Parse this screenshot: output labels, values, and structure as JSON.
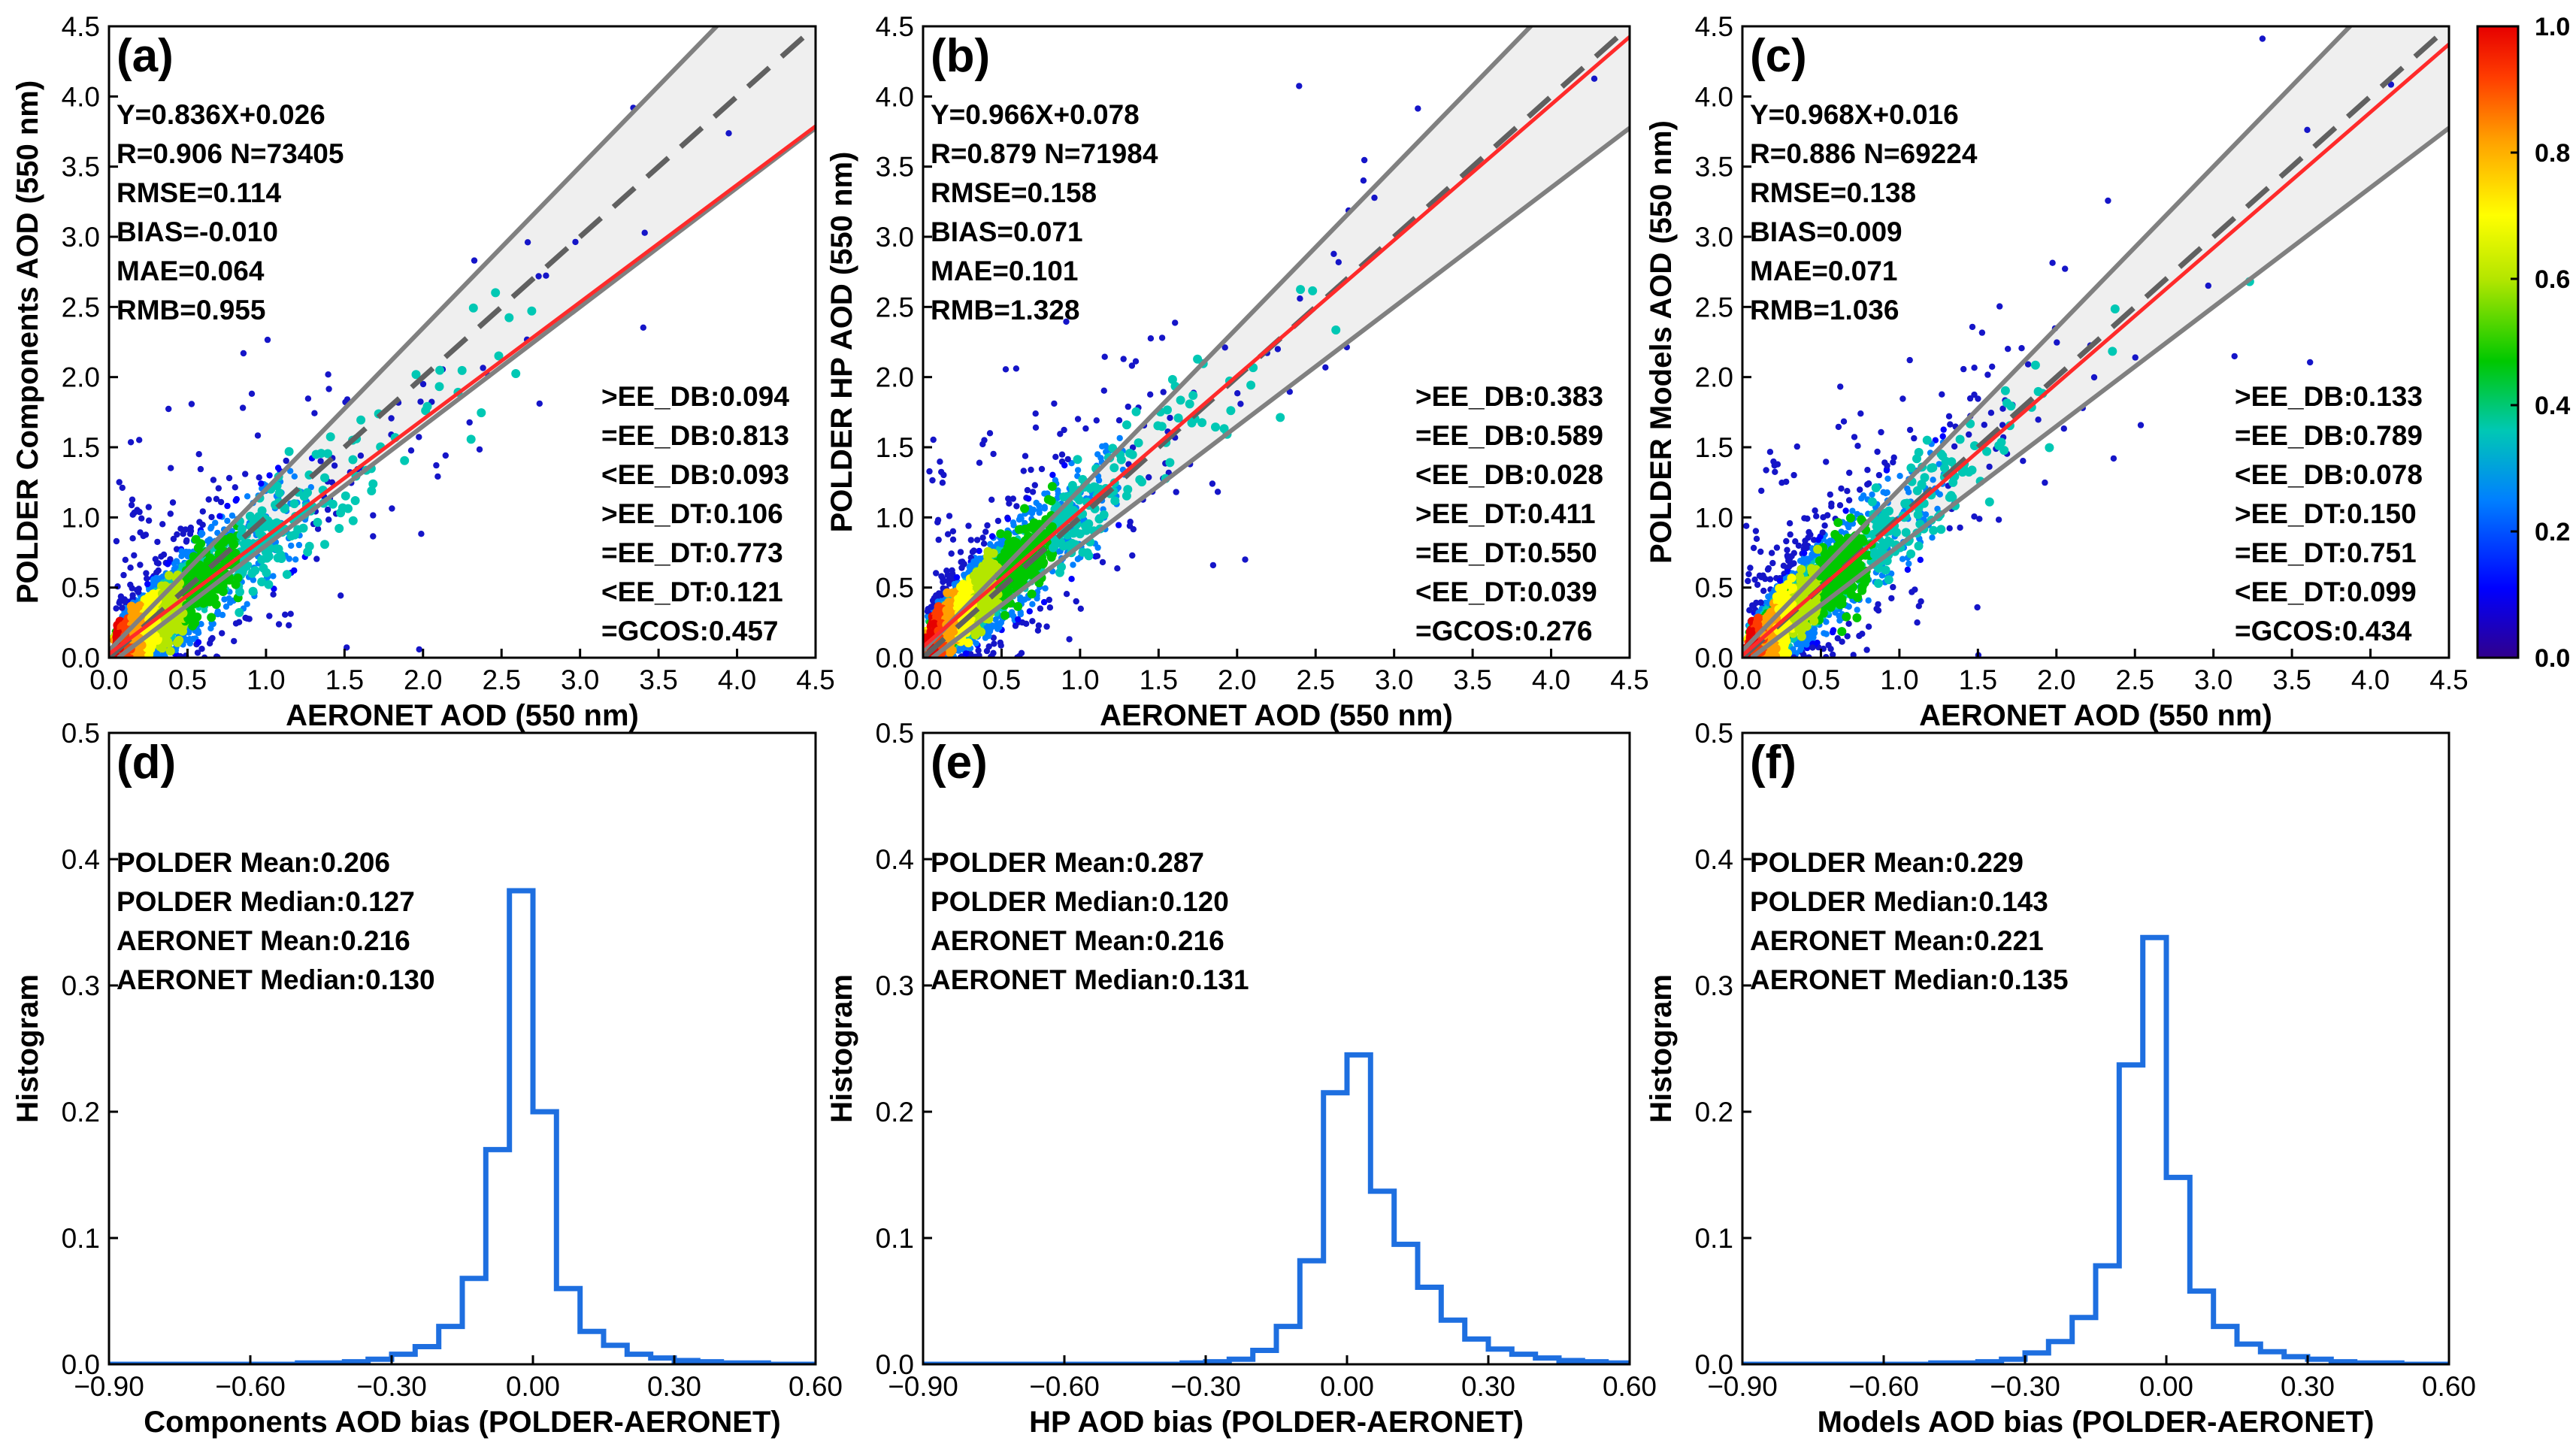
{
  "colors": {
    "fit_line": "#ff2a2a",
    "ee_lines": "#808080",
    "one_to_one": "#606060",
    "ee_fill": "#efefef",
    "hist_line": "#1e6fe0",
    "points_low": "#1515c8",
    "colormap": [
      "#30008c",
      "#0000ff",
      "#0080ff",
      "#00c8b4",
      "#00c800",
      "#b4e600",
      "#ffff00",
      "#ffa000",
      "#ff3c00",
      "#e60000"
    ]
  },
  "colorbar": {
    "ticks": [
      "1.0",
      "0.8",
      "0.6",
      "0.4",
      "0.2",
      "0.0"
    ]
  },
  "chart_data": [
    {
      "type": "scatter",
      "panel": "(a)",
      "xlabel": "AERONET AOD (550 nm)",
      "ylabel": "POLDER Components AOD (550 nm)",
      "xlim": [
        0,
        4.5
      ],
      "ylim": [
        0,
        4.5
      ],
      "xticks": [
        "0.0",
        "0.5",
        "1.0",
        "1.5",
        "2.0",
        "2.5",
        "3.0",
        "3.5",
        "4.0",
        "4.5"
      ],
      "yticks": [
        "0.0",
        "0.5",
        "1.0",
        "1.5",
        "2.0",
        "2.5",
        "3.0",
        "3.5",
        "4.0",
        "4.5"
      ],
      "fit": {
        "slope": 0.836,
        "intercept": 0.026
      },
      "stats_left": [
        "Y=0.836X+0.026",
        "R=0.906 N=73405",
        "RMSE=0.114",
        "BIAS=-0.010",
        "MAE=0.064",
        "RMB=0.955"
      ],
      "stats_right": [
        ">EE_DB:0.094",
        "=EE_DB:0.813",
        "<EE_DB:0.093",
        ">EE_DT:0.106",
        "=EE_DT:0.773",
        "<EE_DT:0.121",
        "=GCOS:0.457"
      ]
    },
    {
      "type": "scatter",
      "panel": "(b)",
      "xlabel": "AERONET AOD (550 nm)",
      "ylabel": "POLDER HP AOD (550 nm)",
      "xlim": [
        0,
        4.5
      ],
      "ylim": [
        0,
        4.5
      ],
      "xticks": [
        "0.0",
        "0.5",
        "1.0",
        "1.5",
        "2.0",
        "2.5",
        "3.0",
        "3.5",
        "4.0",
        "4.5"
      ],
      "yticks": [
        "0.0",
        "0.5",
        "1.0",
        "1.5",
        "2.0",
        "2.5",
        "3.0",
        "3.5",
        "4.0",
        "4.5"
      ],
      "fit": {
        "slope": 0.966,
        "intercept": 0.078
      },
      "stats_left": [
        "Y=0.966X+0.078",
        "R=0.879 N=71984",
        "RMSE=0.158",
        "BIAS=0.071",
        "MAE=0.101",
        "RMB=1.328"
      ],
      "stats_right": [
        ">EE_DB:0.383",
        "=EE_DB:0.589",
        "<EE_DB:0.028",
        ">EE_DT:0.411",
        "=EE_DT:0.550",
        "<EE_DT:0.039",
        "=GCOS:0.276"
      ]
    },
    {
      "type": "scatter",
      "panel": "(c)",
      "xlabel": "AERONET AOD (550 nm)",
      "ylabel": "POLDER Models AOD (550 nm)",
      "xlim": [
        0,
        4.5
      ],
      "ylim": [
        0,
        4.5
      ],
      "xticks": [
        "0.0",
        "0.5",
        "1.0",
        "1.5",
        "2.0",
        "2.5",
        "3.0",
        "3.5",
        "4.0",
        "4.5"
      ],
      "yticks": [
        "0.0",
        "0.5",
        "1.0",
        "1.5",
        "2.0",
        "2.5",
        "3.0",
        "3.5",
        "4.0",
        "4.5"
      ],
      "fit": {
        "slope": 0.968,
        "intercept": 0.016
      },
      "stats_left": [
        "Y=0.968X+0.016",
        "R=0.886 N=69224",
        "RMSE=0.138",
        "BIAS=0.009",
        "MAE=0.071",
        "RMB=1.036"
      ],
      "stats_right": [
        ">EE_DB:0.133",
        "=EE_DB:0.789",
        "<EE_DB:0.078",
        ">EE_DT:0.150",
        "=EE_DT:0.751",
        "<EE_DT:0.099",
        "=GCOS:0.434"
      ]
    },
    {
      "type": "line",
      "panel": "(d)",
      "xlabel": "Components AOD bias (POLDER-AERONET)",
      "ylabel": "Histogram",
      "xlim": [
        -0.9,
        0.6
      ],
      "ylim": [
        0,
        0.5
      ],
      "xticks": [
        "−0.90",
        "−0.60",
        "−0.30",
        "0.00",
        "0.30",
        "0.60"
      ],
      "yticks": [
        "0.0",
        "0.1",
        "0.2",
        "0.3",
        "0.4",
        "0.5"
      ],
      "stats_left": [
        "POLDER Mean:0.206",
        "POLDER Median:0.127",
        "AERONET Mean:0.216",
        "AERONET Median:0.130"
      ],
      "bin_edges": [
        -0.9,
        -0.85,
        -0.8,
        -0.75,
        -0.7,
        -0.65,
        -0.6,
        -0.55,
        -0.5,
        -0.45,
        -0.4,
        -0.35,
        -0.3,
        -0.25,
        -0.2,
        -0.15,
        -0.1,
        -0.05,
        0,
        0.05,
        0.1,
        0.15,
        0.2,
        0.25,
        0.3,
        0.35,
        0.4,
        0.45,
        0.5,
        0.55,
        0.6
      ],
      "values": [
        0,
        0,
        0,
        0,
        0,
        0,
        0,
        0,
        0.001,
        0.001,
        0.002,
        0.004,
        0.008,
        0.014,
        0.03,
        0.068,
        0.17,
        0.375,
        0.2,
        0.06,
        0.026,
        0.015,
        0.008,
        0.005,
        0.003,
        0.002,
        0.001,
        0.001,
        0,
        0
      ]
    },
    {
      "type": "line",
      "panel": "(e)",
      "xlabel": "HP AOD bias (POLDER-AERONET)",
      "ylabel": "Histogram",
      "xlim": [
        -0.9,
        0.6
      ],
      "ylim": [
        0,
        0.5
      ],
      "xticks": [
        "−0.90",
        "−0.60",
        "−0.30",
        "0.00",
        "0.30",
        "0.60"
      ],
      "yticks": [
        "0.0",
        "0.1",
        "0.2",
        "0.3",
        "0.4",
        "0.5"
      ],
      "stats_left": [
        "POLDER Mean:0.287",
        "POLDER Median:0.120",
        "AERONET Mean:0.216",
        "AERONET Median:0.131"
      ],
      "bin_edges": [
        -0.9,
        -0.85,
        -0.8,
        -0.75,
        -0.7,
        -0.65,
        -0.6,
        -0.55,
        -0.5,
        -0.45,
        -0.4,
        -0.35,
        -0.3,
        -0.25,
        -0.2,
        -0.15,
        -0.1,
        -0.05,
        0,
        0.05,
        0.1,
        0.15,
        0.2,
        0.25,
        0.3,
        0.35,
        0.4,
        0.45,
        0.5,
        0.55,
        0.6
      ],
      "values": [
        0,
        0,
        0,
        0,
        0,
        0,
        0,
        0,
        0,
        0,
        0,
        0.001,
        0.002,
        0.004,
        0.011,
        0.03,
        0.082,
        0.215,
        0.245,
        0.137,
        0.095,
        0.061,
        0.035,
        0.02,
        0.012,
        0.008,
        0.005,
        0.003,
        0.002,
        0.001
      ]
    },
    {
      "type": "line",
      "panel": "(f)",
      "xlabel": "Models AOD bias (POLDER-AERONET)",
      "ylabel": "Histogram",
      "xlim": [
        -0.9,
        0.6
      ],
      "ylim": [
        0,
        0.5
      ],
      "xticks": [
        "−0.90",
        "−0.60",
        "−0.30",
        "0.00",
        "0.30",
        "0.60"
      ],
      "yticks": [
        "0.0",
        "0.1",
        "0.2",
        "0.3",
        "0.4",
        "0.5"
      ],
      "stats_left": [
        "POLDER Mean:0.229",
        "POLDER Median:0.143",
        "AERONET Mean:0.221",
        "AERONET Median:0.135"
      ],
      "bin_edges": [
        -0.9,
        -0.85,
        -0.8,
        -0.75,
        -0.7,
        -0.65,
        -0.6,
        -0.55,
        -0.5,
        -0.45,
        -0.4,
        -0.35,
        -0.3,
        -0.25,
        -0.2,
        -0.15,
        -0.1,
        -0.05,
        0,
        0.05,
        0.1,
        0.15,
        0.2,
        0.25,
        0.3,
        0.35,
        0.4,
        0.45,
        0.5,
        0.55,
        0.6
      ],
      "values": [
        0,
        0,
        0,
        0,
        0,
        0,
        0,
        0,
        0.001,
        0.001,
        0.002,
        0.004,
        0.009,
        0.018,
        0.037,
        0.078,
        0.237,
        0.338,
        0.148,
        0.058,
        0.03,
        0.016,
        0.01,
        0.006,
        0.004,
        0.002,
        0.001,
        0.001,
        0,
        0
      ]
    }
  ]
}
